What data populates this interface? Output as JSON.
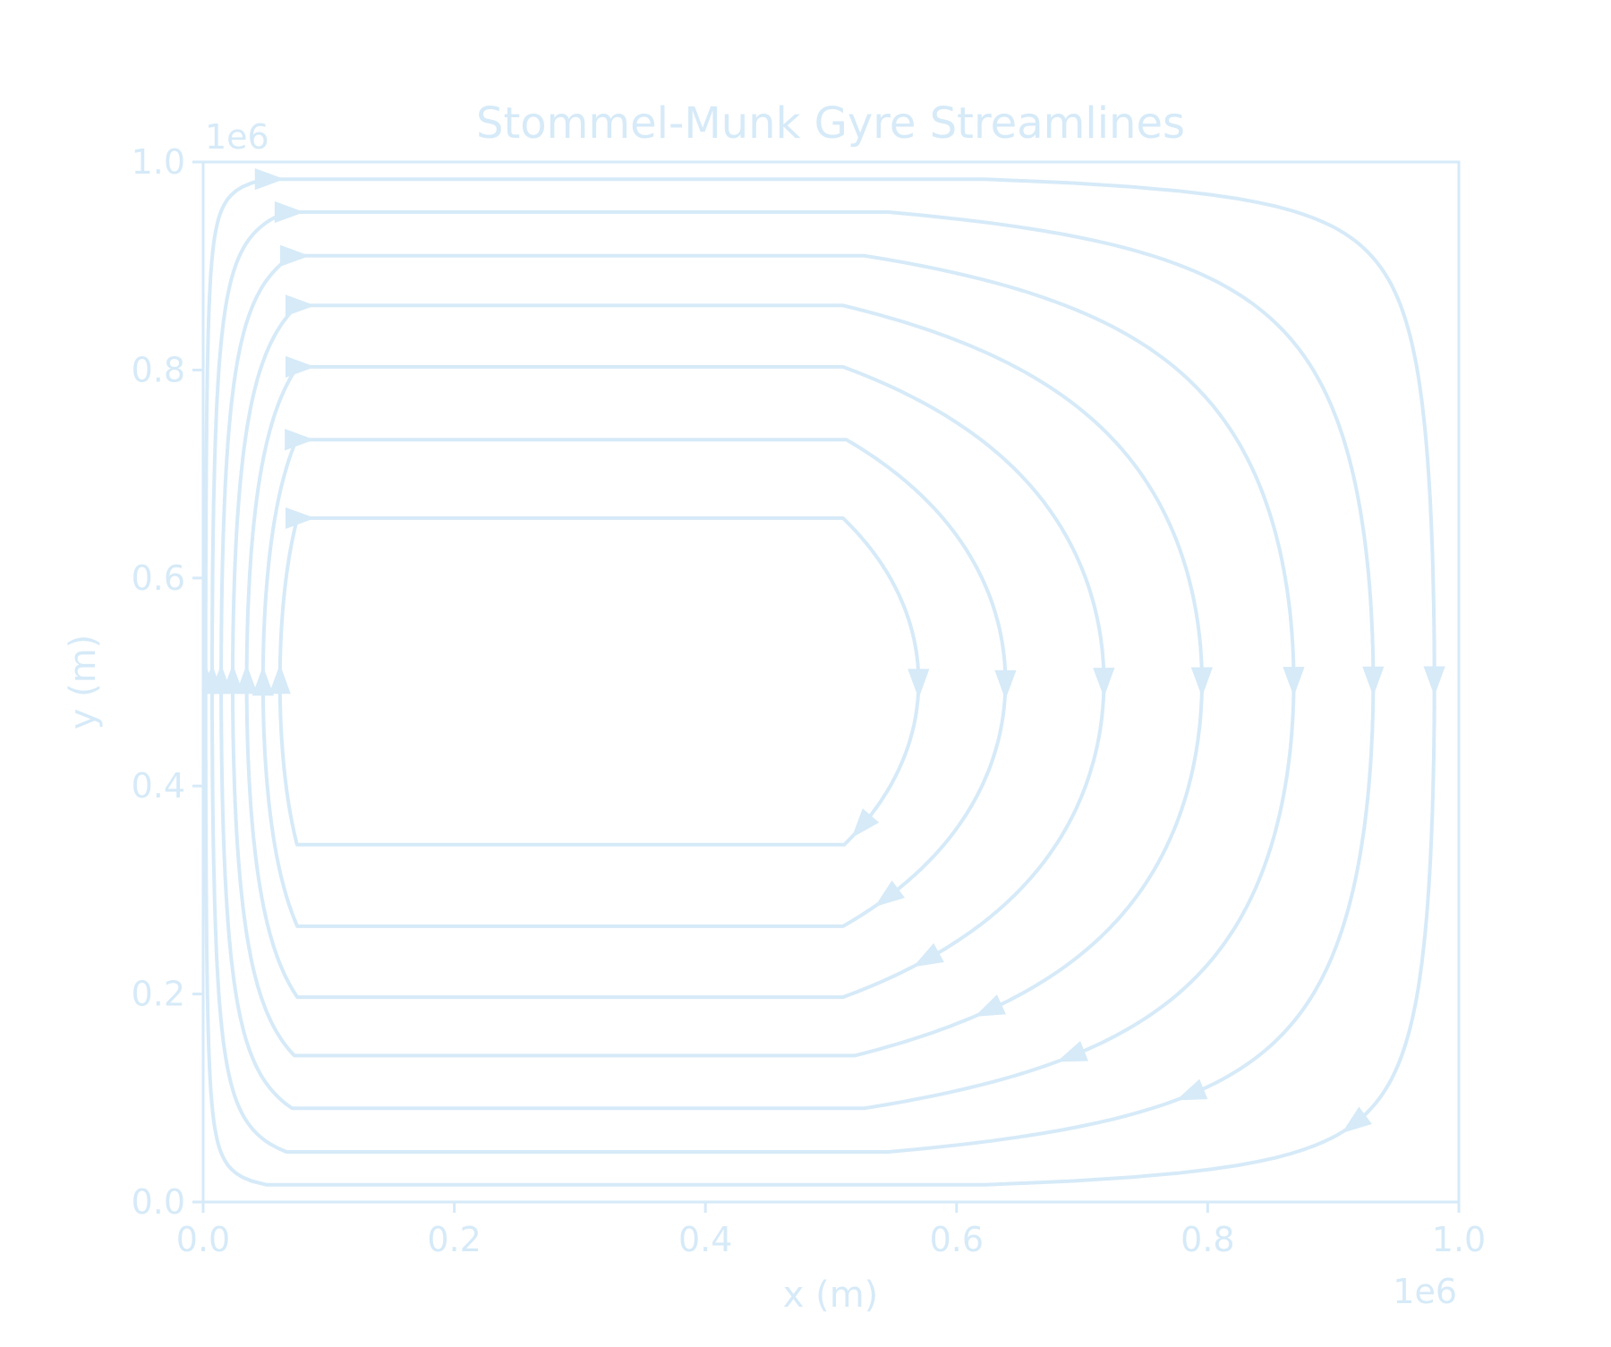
{
  "chart_data": {
    "type": "streamplot",
    "title": "Stommel-Munk Gyre Streamlines",
    "xlabel": "x (m)",
    "ylabel": "y (m)",
    "xlim": [
      0,
      1000000
    ],
    "ylim": [
      0,
      1000000
    ],
    "x_offset_label": "1e6",
    "y_offset_label": "1e6",
    "xticks": [
      0.0,
      0.2,
      0.4,
      0.6,
      0.8,
      1.0
    ],
    "yticks": [
      0.0,
      0.2,
      0.4,
      0.6,
      0.8,
      1.0
    ],
    "xtick_labels": [
      "0.0",
      "0.2",
      "0.4",
      "0.6",
      "0.8",
      "1.0"
    ],
    "ytick_labels": [
      "0.0",
      "0.2",
      "0.4",
      "0.6",
      "0.8",
      "1.0"
    ],
    "grid": false,
    "gyre_center": [
      75000,
      500000
    ],
    "circulation": "clockwise",
    "color": "#d6eaf8",
    "streamline_levels": [
      0.04,
      0.14,
      0.27,
      0.42,
      0.58,
      0.74,
      0.88
    ],
    "western_boundary_current": "northward along the western boundary"
  }
}
